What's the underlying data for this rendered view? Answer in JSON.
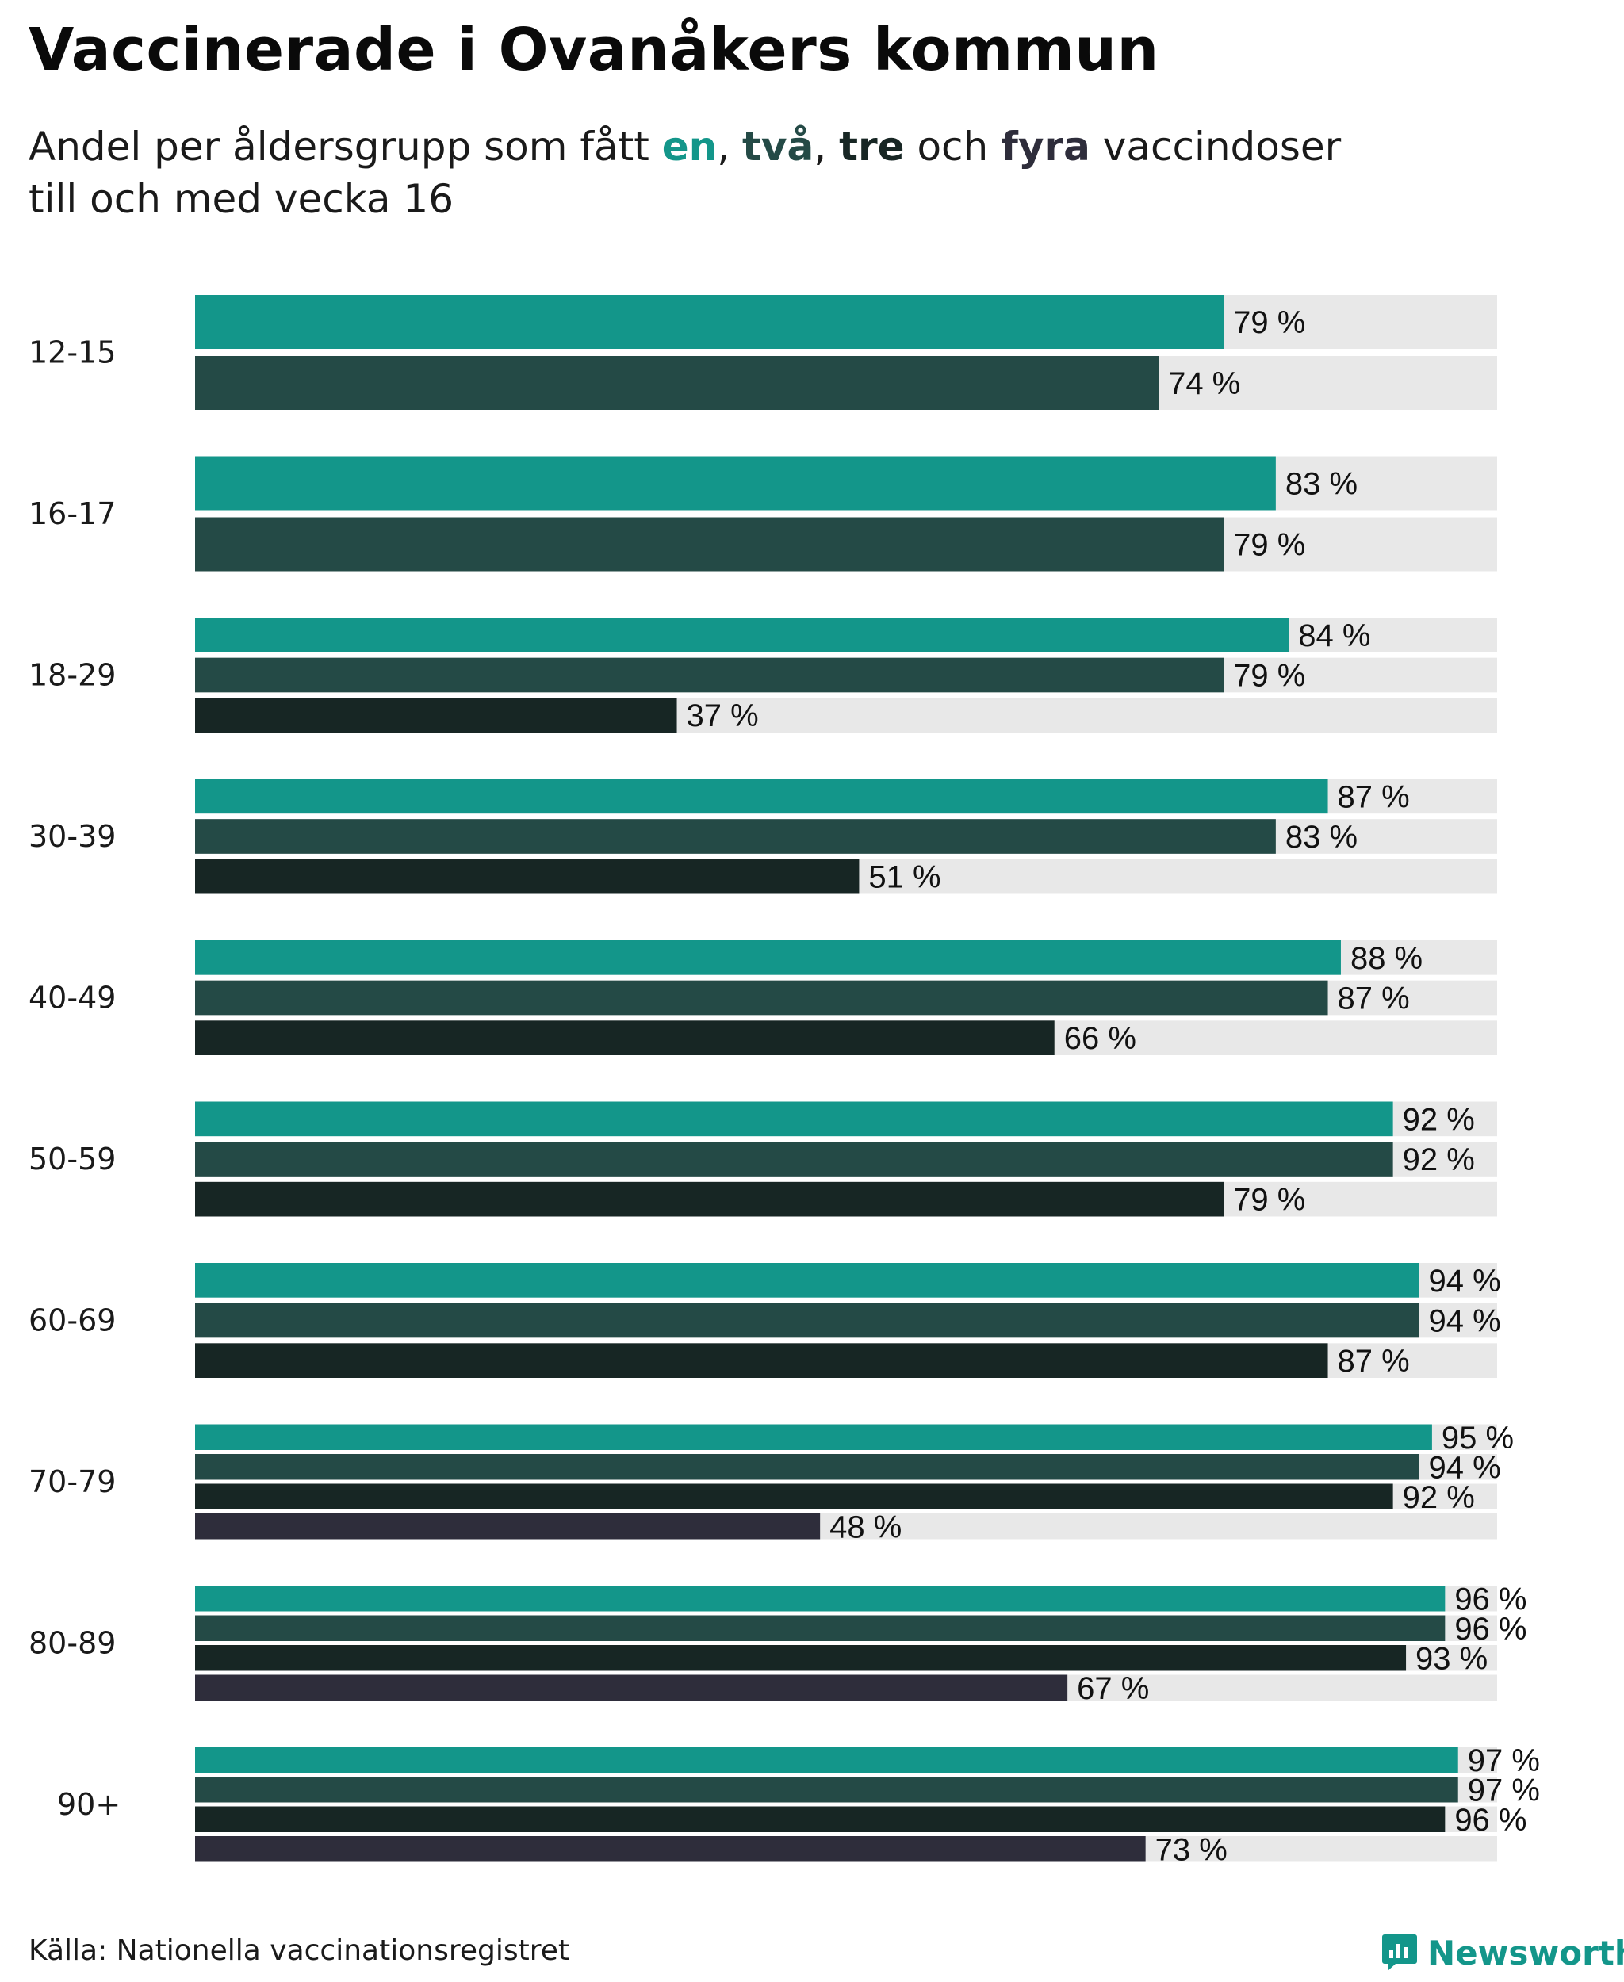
{
  "title": "Vaccinerade i Ovanåkers kommun",
  "subtitle": {
    "part1": "Andel per åldersgrupp som fått ",
    "w1": "en",
    "sep1": ", ",
    "w2": "två",
    "sep2": ", ",
    "w3": "tre",
    "part2": " och ",
    "w4": "fyra",
    "part3": " vaccindoser",
    "line2": "till och med vecka 16"
  },
  "source": "Källa: Nationella vaccinationsregistret",
  "brand": {
    "name": "Newsworthy",
    "icon": "newsworthy-logo-icon"
  },
  "colors": {
    "dose1": "#13968a",
    "dose2": "#244a46",
    "dose3": "#172624",
    "dose4": "#2e2d3b",
    "track": "#e8e8e8",
    "brand": "#13968a"
  },
  "chart_data": {
    "type": "bar",
    "orientation": "horizontal",
    "title": "Vaccinerade i Ovanåkers kommun",
    "xlim": [
      0,
      100
    ],
    "value_suffix": " %",
    "series_names": [
      "en",
      "två",
      "tre",
      "fyra"
    ],
    "groups": [
      {
        "label": "12-15",
        "values": [
          79,
          74
        ]
      },
      {
        "label": "16-17",
        "values": [
          83,
          79
        ]
      },
      {
        "label": "18-29",
        "values": [
          84,
          79,
          37
        ]
      },
      {
        "label": "30-39",
        "values": [
          87,
          83,
          51
        ]
      },
      {
        "label": "40-49",
        "values": [
          88,
          87,
          66
        ]
      },
      {
        "label": "50-59",
        "values": [
          92,
          92,
          79
        ]
      },
      {
        "label": "60-69",
        "values": [
          94,
          94,
          87
        ]
      },
      {
        "label": "70-79",
        "values": [
          95,
          94,
          92,
          48
        ]
      },
      {
        "label": "80-89",
        "values": [
          96,
          96,
          93,
          67
        ]
      },
      {
        "label": "90+",
        "values": [
          97,
          97,
          96,
          73
        ]
      }
    ]
  }
}
